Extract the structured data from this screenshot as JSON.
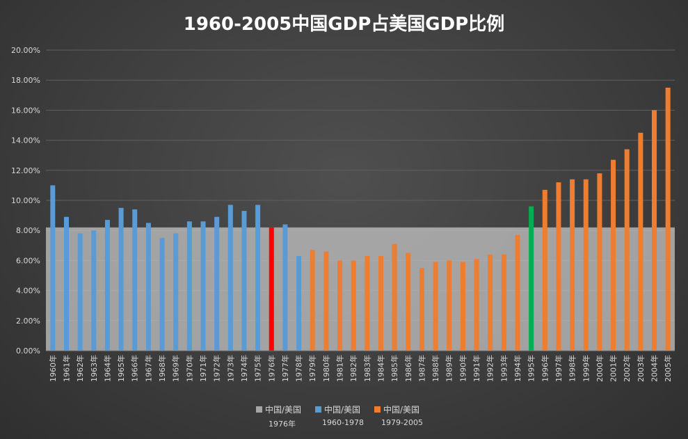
{
  "chart_data": {
    "type": "bar",
    "title": "1960-2005中国GDP占美国GDP比例",
    "ylim": [
      0,
      0.2
    ],
    "yticks": [
      "0.00%",
      "2.00%",
      "4.00%",
      "6.00%",
      "8.00%",
      "10.00%",
      "12.00%",
      "14.00%",
      "16.00%",
      "18.00%",
      "20.00%"
    ],
    "grid": true,
    "categories": [
      "1960年",
      "1961年",
      "1962年",
      "1963年",
      "1964年",
      "1965年",
      "1966年",
      "1967年",
      "1968年",
      "1969年",
      "1970年",
      "1971年",
      "1972年",
      "1973年",
      "1974年",
      "1975年",
      "1976年",
      "1977年",
      "1978年",
      "1979年",
      "1980年",
      "1981年",
      "1982年",
      "1983年",
      "1984年",
      "1985年",
      "1986年",
      "1987年",
      "1988年",
      "1989年",
      "1990年",
      "1991年",
      "1992年",
      "1993年",
      "1994年",
      "1995年",
      "1996年",
      "1997年",
      "1998年",
      "1999年",
      "2000年",
      "2001年",
      "2002年",
      "2003年",
      "2004年",
      "2005年"
    ],
    "values": [
      0.11,
      0.089,
      0.078,
      0.08,
      0.087,
      0.095,
      0.094,
      0.085,
      0.075,
      0.078,
      0.086,
      0.086,
      0.089,
      0.097,
      0.093,
      0.097,
      0.082,
      0.084,
      0.063,
      0.067,
      0.066,
      0.06,
      0.06,
      0.063,
      0.063,
      0.071,
      0.065,
      0.055,
      0.059,
      0.06,
      0.059,
      0.061,
      0.064,
      0.064,
      0.077,
      0.096,
      0.107,
      0.112,
      0.114,
      0.114,
      0.118,
      0.127,
      0.134,
      0.145,
      0.16,
      0.175
    ],
    "bar_colors": {
      "1960-1978": "#5b9bd5",
      "1979-2005": "#ed7d31",
      "highlight_1976": "#ff0000",
      "highlight_1995": "#00b050"
    },
    "band": {
      "value": 0.082,
      "color": "#bfbfbf"
    },
    "legend_position": "bottom",
    "legend": [
      {
        "line1": "中国/美国",
        "line2": "1976年",
        "color": "#a6a6a6"
      },
      {
        "line1": "中国/美国",
        "line2": "1960-1978",
        "color": "#5b9bd5"
      },
      {
        "line1": "中国/美国",
        "line2": "1979-2005",
        "color": "#ed7d31"
      }
    ]
  }
}
